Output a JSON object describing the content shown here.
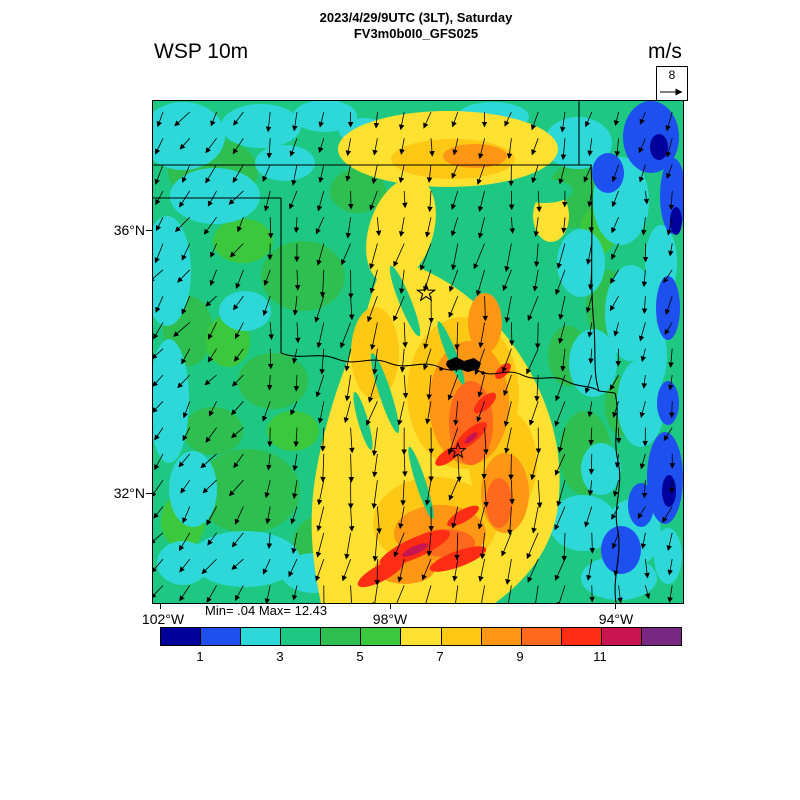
{
  "header": {
    "title_line1": "2023/4/29/9UTC (3LT), Saturday",
    "title_line2": "FV3m0b0I0_GFS025",
    "field_label": "WSP 10m",
    "units_label": "m/s",
    "ref_vector_value": "8"
  },
  "axes": {
    "lat": {
      "n36": "36°N",
      "n32": "32°N"
    },
    "lon": {
      "w102": "102°W",
      "w98": "98°W",
      "w94": "94°W"
    }
  },
  "stats_text": "Min= .04 Max= 12.43",
  "chart_data": {
    "type": "heatmap",
    "title": "2023/4/29/9UTC (3LT), Saturday",
    "subtitle": "FV3m0b0I0_GFS025",
    "variable": "WSP 10m (10-meter wind speed)",
    "units": "m/s",
    "stat_min": 0.04,
    "stat_max": 12.43,
    "reference_vector_ms": 8,
    "lat_ticks": [
      "36°N",
      "32°N"
    ],
    "lon_ticks": [
      "102°W",
      "98°W",
      "94°W"
    ],
    "colorbar": {
      "levels_ms": [
        0,
        1,
        2,
        3,
        4,
        5,
        6,
        7,
        8,
        9,
        10,
        11,
        12,
        13
      ],
      "tick_labels": [
        "1",
        "3",
        "5",
        "7",
        "9",
        "11"
      ],
      "segment_colors": [
        "navy",
        "blue",
        "cyan",
        "teal",
        "green",
        "brightgreen",
        "yellow",
        "gold",
        "orange",
        "deeporange",
        "red",
        "crimson",
        "purple"
      ],
      "palette": {
        "navy": "#00009B",
        "blue": "#1E50F0",
        "cyan": "#2FD8D8",
        "teal": "#1EC882",
        "green": "#2FBE50",
        "brightgreen": "#3CC83C",
        "yellow": "#FFE132",
        "gold": "#FFC814",
        "orange": "#FF9614",
        "deeporange": "#FF691E",
        "red": "#FF2D14",
        "crimson": "#C81450",
        "purple": "#782882"
      }
    },
    "field_summary": [
      {
        "region": "broad SW-NE band from central Texas through western/central Oklahoma",
        "value_range_ms": "6-10",
        "appearance": "yellow-orange wind maximum"
      },
      {
        "region": "streaks in north-central Texas south of the Red River",
        "value_range_ms": "10-12.43",
        "appearance": "red/crimson cores"
      },
      {
        "region": "most of the remaining domain",
        "value_range_ms": "3-6",
        "appearance": "green"
      },
      {
        "region": "patches in NW corner, left edge and SW corner",
        "value_range_ms": "2-3",
        "appearance": "cyan"
      },
      {
        "region": "eastern edge (east Texas / Arkansas)",
        "value_range_ms": "0-3",
        "appearance": "blue and cyan wind minimum"
      }
    ],
    "wind_vectors": {
      "depiction": "black arrows on a regular grid",
      "direction": "northerly flow, arrows point south to south-southwest",
      "reference_arrow_ms": 8
    },
    "overlays": {
      "borders": [
        "Oklahoma state outline with panhandle",
        "Texas eastern border",
        "Red River boundary"
      ],
      "markers": [
        {
          "shape": "open star",
          "place": "central Oklahoma (Oklahoma City area)"
        },
        {
          "shape": "open star",
          "place": "north-central Texas (Dallas area)"
        },
        {
          "shape": "black filled water body",
          "place": "Lake Texoma on the Red River"
        }
      ]
    }
  }
}
